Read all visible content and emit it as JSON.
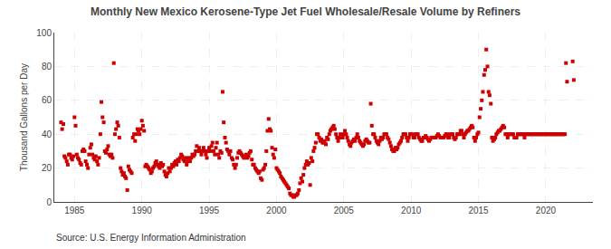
{
  "chart_data": {
    "type": "scatter",
    "title": "Monthly New Mexico Kerosene-Type Jet Fuel Wholesale/Resale Volume by Refiners",
    "ylabel": "Thousand Gallons per Day",
    "annotations": [
      "Source: U.S. Energy Information Administration"
    ],
    "color": "#CC0000",
    "marker": "square",
    "grid": true,
    "xlim": [
      1983.5,
      2023.5
    ],
    "ylim": [
      0,
      100
    ],
    "xticks": [
      1985,
      1990,
      1995,
      2000,
      2005,
      2010,
      2015,
      2020
    ],
    "yticks": [
      0,
      20,
      40,
      60,
      80,
      100
    ],
    "x": [
      1984.0,
      1984.08,
      1984.17,
      1984.25,
      1984.33,
      1984.42,
      1984.5,
      1984.58,
      1984.67,
      1984.75,
      1984.83,
      1984.92,
      1985.0,
      1985.08,
      1985.17,
      1985.25,
      1985.33,
      1985.42,
      1985.5,
      1985.58,
      1985.67,
      1985.75,
      1985.83,
      1985.92,
      1986.0,
      1986.08,
      1986.17,
      1986.25,
      1986.33,
      1986.42,
      1986.5,
      1986.58,
      1986.67,
      1986.75,
      1986.83,
      1986.92,
      1987.0,
      1987.08,
      1987.17,
      1987.25,
      1987.33,
      1987.42,
      1987.5,
      1987.58,
      1987.67,
      1987.75,
      1987.83,
      1987.92,
      1988.0,
      1988.08,
      1988.17,
      1988.25,
      1988.33,
      1988.42,
      1988.5,
      1988.58,
      1988.67,
      1988.75,
      1988.83,
      1988.92,
      1989.0,
      1989.08,
      1989.17,
      1989.25,
      1989.33,
      1989.42,
      1989.5,
      1989.58,
      1989.67,
      1989.75,
      1989.83,
      1989.92,
      1990.0,
      1990.08,
      1990.17,
      1990.25,
      1990.33,
      1990.42,
      1990.5,
      1990.58,
      1990.67,
      1990.75,
      1990.83,
      1990.92,
      1991.0,
      1991.08,
      1991.17,
      1991.25,
      1991.33,
      1991.42,
      1991.5,
      1991.58,
      1991.67,
      1991.75,
      1991.83,
      1991.92,
      1992.0,
      1992.08,
      1992.17,
      1992.25,
      1992.33,
      1992.42,
      1992.5,
      1992.58,
      1992.67,
      1992.75,
      1992.83,
      1992.92,
      1993.0,
      1993.08,
      1993.17,
      1993.25,
      1993.33,
      1993.42,
      1993.5,
      1993.58,
      1993.67,
      1993.75,
      1993.83,
      1993.92,
      1994.0,
      1994.08,
      1994.17,
      1994.25,
      1994.33,
      1994.42,
      1994.5,
      1994.58,
      1994.67,
      1994.75,
      1994.83,
      1994.92,
      1995.0,
      1995.08,
      1995.17,
      1995.25,
      1995.33,
      1995.42,
      1995.5,
      1995.58,
      1995.67,
      1995.75,
      1995.83,
      1995.92,
      1996.0,
      1996.08,
      1996.17,
      1996.25,
      1996.33,
      1996.42,
      1996.5,
      1996.58,
      1996.67,
      1996.75,
      1996.83,
      1996.92,
      1997.0,
      1997.08,
      1997.17,
      1997.25,
      1997.33,
      1997.42,
      1997.5,
      1997.58,
      1997.67,
      1997.75,
      1997.83,
      1997.92,
      1998.0,
      1998.08,
      1998.17,
      1998.25,
      1998.33,
      1998.42,
      1998.5,
      1998.58,
      1998.67,
      1998.75,
      1998.83,
      1998.92,
      1999.0,
      1999.08,
      1999.17,
      1999.25,
      1999.33,
      1999.42,
      1999.5,
      1999.58,
      1999.67,
      1999.75,
      1999.83,
      1999.92,
      2000.0,
      2000.08,
      2000.17,
      2000.25,
      2000.33,
      2000.42,
      2000.5,
      2000.58,
      2000.67,
      2000.75,
      2000.83,
      2000.92,
      2001.0,
      2001.08,
      2001.17,
      2001.25,
      2001.33,
      2001.42,
      2001.5,
      2001.58,
      2001.67,
      2001.75,
      2001.83,
      2001.92,
      2002.0,
      2002.08,
      2002.17,
      2002.25,
      2002.33,
      2002.42,
      2002.5,
      2002.58,
      2002.67,
      2002.75,
      2002.83,
      2002.92,
      2003.0,
      2003.08,
      2003.17,
      2003.25,
      2003.33,
      2003.42,
      2003.5,
      2003.58,
      2003.67,
      2003.75,
      2003.83,
      2003.92,
      2004.0,
      2004.08,
      2004.17,
      2004.25,
      2004.33,
      2004.42,
      2004.5,
      2004.58,
      2004.67,
      2004.75,
      2004.83,
      2004.92,
      2005.0,
      2005.08,
      2005.17,
      2005.25,
      2005.33,
      2005.42,
      2005.5,
      2005.58,
      2005.67,
      2005.75,
      2005.83,
      2005.92,
      2006.0,
      2006.08,
      2006.17,
      2006.25,
      2006.33,
      2006.42,
      2006.5,
      2006.58,
      2006.67,
      2006.75,
      2006.83,
      2006.92,
      2007.0,
      2007.08,
      2007.17,
      2007.25,
      2007.33,
      2007.42,
      2007.5,
      2007.58,
      2007.67,
      2007.75,
      2007.83,
      2007.92,
      2008.0,
      2008.08,
      2008.17,
      2008.25,
      2008.33,
      2008.42,
      2008.5,
      2008.58,
      2008.67,
      2008.75,
      2008.83,
      2008.92,
      2009.0,
      2009.08,
      2009.17,
      2009.25,
      2009.33,
      2009.42,
      2009.5,
      2009.58,
      2009.67,
      2009.75,
      2009.83,
      2009.92,
      2010.0,
      2010.08,
      2010.17,
      2010.25,
      2010.33,
      2010.42,
      2010.5,
      2010.58,
      2010.67,
      2010.75,
      2010.83,
      2010.92,
      2011.0,
      2011.08,
      2011.17,
      2011.25,
      2011.33,
      2011.42,
      2011.5,
      2011.58,
      2011.67,
      2011.75,
      2011.83,
      2011.92,
      2012.0,
      2012.08,
      2012.17,
      2012.25,
      2012.33,
      2012.42,
      2012.5,
      2012.58,
      2012.67,
      2012.75,
      2012.83,
      2012.92,
      2013.0,
      2013.08,
      2013.17,
      2013.25,
      2013.33,
      2013.42,
      2013.5,
      2013.58,
      2013.67,
      2013.75,
      2013.83,
      2013.92,
      2014.0,
      2014.08,
      2014.17,
      2014.25,
      2014.33,
      2014.42,
      2014.5,
      2014.58,
      2014.67,
      2014.75,
      2014.83,
      2014.92,
      2015.0,
      2015.08,
      2015.17,
      2015.25,
      2015.33,
      2015.42,
      2015.5,
      2015.58,
      2015.67,
      2015.75,
      2015.83,
      2015.92,
      2016.0,
      2016.08,
      2016.17,
      2016.25,
      2016.33,
      2016.42,
      2016.5,
      2016.58,
      2016.67,
      2016.75,
      2016.83,
      2016.92,
      2017.0,
      2017.08,
      2017.17,
      2017.25,
      2017.33,
      2017.42,
      2017.5,
      2017.58,
      2017.67,
      2017.75,
      2017.83,
      2017.92,
      2018.0,
      2018.08,
      2018.17,
      2018.25,
      2018.33,
      2018.42,
      2018.5,
      2018.58,
      2018.67,
      2018.75,
      2018.83,
      2018.92,
      2019.0,
      2019.08,
      2019.17,
      2019.25,
      2019.33,
      2019.42,
      2019.5,
      2019.58,
      2019.67,
      2019.75,
      2019.83,
      2019.92,
      2020.0,
      2020.08,
      2020.17,
      2020.25,
      2020.33,
      2020.42,
      2020.5,
      2020.58,
      2020.67,
      2020.75,
      2020.83,
      2020.92,
      2021.0,
      2021.08,
      2021.17,
      2021.25,
      2021.33,
      2021.42,
      2021.5,
      2021.58,
      2022.0,
      2022.08
    ],
    "values": [
      47,
      43,
      46,
      27,
      26,
      24,
      22,
      28,
      28,
      26,
      25,
      27,
      50,
      45,
      28,
      26,
      25,
      23,
      22,
      30,
      31,
      30,
      24,
      22,
      20,
      28,
      32,
      34,
      28,
      26,
      25,
      27,
      24,
      22,
      26,
      40,
      59,
      50,
      47,
      30,
      29,
      31,
      33,
      28,
      27,
      28,
      26,
      82,
      40,
      43,
      47,
      45,
      38,
      20,
      18,
      16,
      17,
      15,
      14,
      7,
      21,
      19,
      18,
      17,
      38,
      40,
      36,
      40,
      43,
      42,
      40,
      43,
      48,
      45,
      42,
      21,
      22,
      21,
      20,
      19,
      17,
      18,
      20,
      21,
      23,
      24,
      22,
      21,
      20,
      23,
      21,
      22,
      18,
      16,
      15,
      17,
      20,
      18,
      20,
      22,
      21,
      23,
      24,
      22,
      25,
      24,
      26,
      28,
      27,
      25,
      24,
      26,
      22,
      24,
      26,
      24,
      26,
      28,
      27,
      28,
      30,
      33,
      30,
      32,
      30,
      28,
      30,
      32,
      30,
      28,
      26,
      30,
      32,
      30,
      33,
      35,
      30,
      28,
      32,
      35,
      28,
      26,
      30,
      29,
      65,
      47,
      38,
      35,
      31,
      30,
      28,
      30,
      26,
      25,
      22,
      20,
      22,
      26,
      29,
      30,
      29,
      28,
      27,
      26,
      27,
      28,
      26,
      27,
      29,
      30,
      25,
      22,
      22,
      20,
      19,
      18,
      17,
      18,
      14,
      13,
      19,
      20,
      22,
      30,
      42,
      49,
      43,
      42,
      32,
      28,
      26,
      31,
      20,
      19,
      18,
      17,
      15,
      14,
      13,
      12,
      11,
      10,
      9,
      8,
      5,
      4,
      4,
      3,
      3,
      4,
      4,
      5,
      7,
      11,
      14,
      12,
      16,
      20,
      22,
      24,
      22,
      23,
      10,
      26,
      24,
      30,
      32,
      35,
      40,
      40,
      38,
      36,
      37,
      35,
      35,
      36,
      34,
      38,
      37,
      40,
      42,
      43,
      44,
      45,
      43,
      40,
      38,
      36,
      38,
      40,
      38,
      38,
      40,
      42,
      40,
      38,
      36,
      34,
      33,
      35,
      36,
      37,
      36,
      38,
      40,
      38,
      36,
      35,
      34,
      33,
      34,
      36,
      37,
      36,
      35,
      35,
      58,
      45,
      40,
      40,
      38,
      36,
      35,
      34,
      36,
      38,
      37,
      38,
      40,
      40,
      40,
      38,
      37,
      35,
      33,
      31,
      30,
      30,
      32,
      31,
      32,
      34,
      35,
      36,
      38,
      40,
      40,
      40,
      38,
      36,
      38,
      40,
      40,
      40,
      38,
      38,
      40,
      40,
      40,
      38,
      37,
      36,
      36,
      38,
      38,
      39,
      38,
      37,
      36,
      37,
      38,
      38,
      38,
      38,
      38,
      39,
      40,
      39,
      38,
      38,
      38,
      38,
      39,
      40,
      40,
      38,
      38,
      40,
      40,
      40,
      38,
      37,
      38,
      40,
      40,
      40,
      42,
      42,
      40,
      38,
      40,
      41,
      42,
      42,
      43,
      44,
      45,
      44,
      38,
      36,
      38,
      40,
      41,
      50,
      55,
      60,
      65,
      75,
      78,
      90,
      80,
      65,
      63,
      58,
      38,
      36,
      37,
      38,
      40,
      41,
      42,
      42,
      43,
      44,
      45,
      44,
      40,
      40,
      38,
      40,
      40,
      40,
      40,
      40,
      38,
      38,
      38,
      40,
      40,
      40,
      40,
      40,
      40,
      38,
      40,
      40,
      40,
      40,
      40,
      40,
      40,
      40,
      40,
      40,
      40,
      40,
      40,
      40,
      40,
      40,
      40,
      40,
      40,
      40,
      40,
      40,
      40,
      40,
      40,
      40,
      40,
      40,
      40,
      40,
      40,
      40,
      40,
      40,
      40,
      40,
      82,
      71,
      83,
      72
    ]
  }
}
